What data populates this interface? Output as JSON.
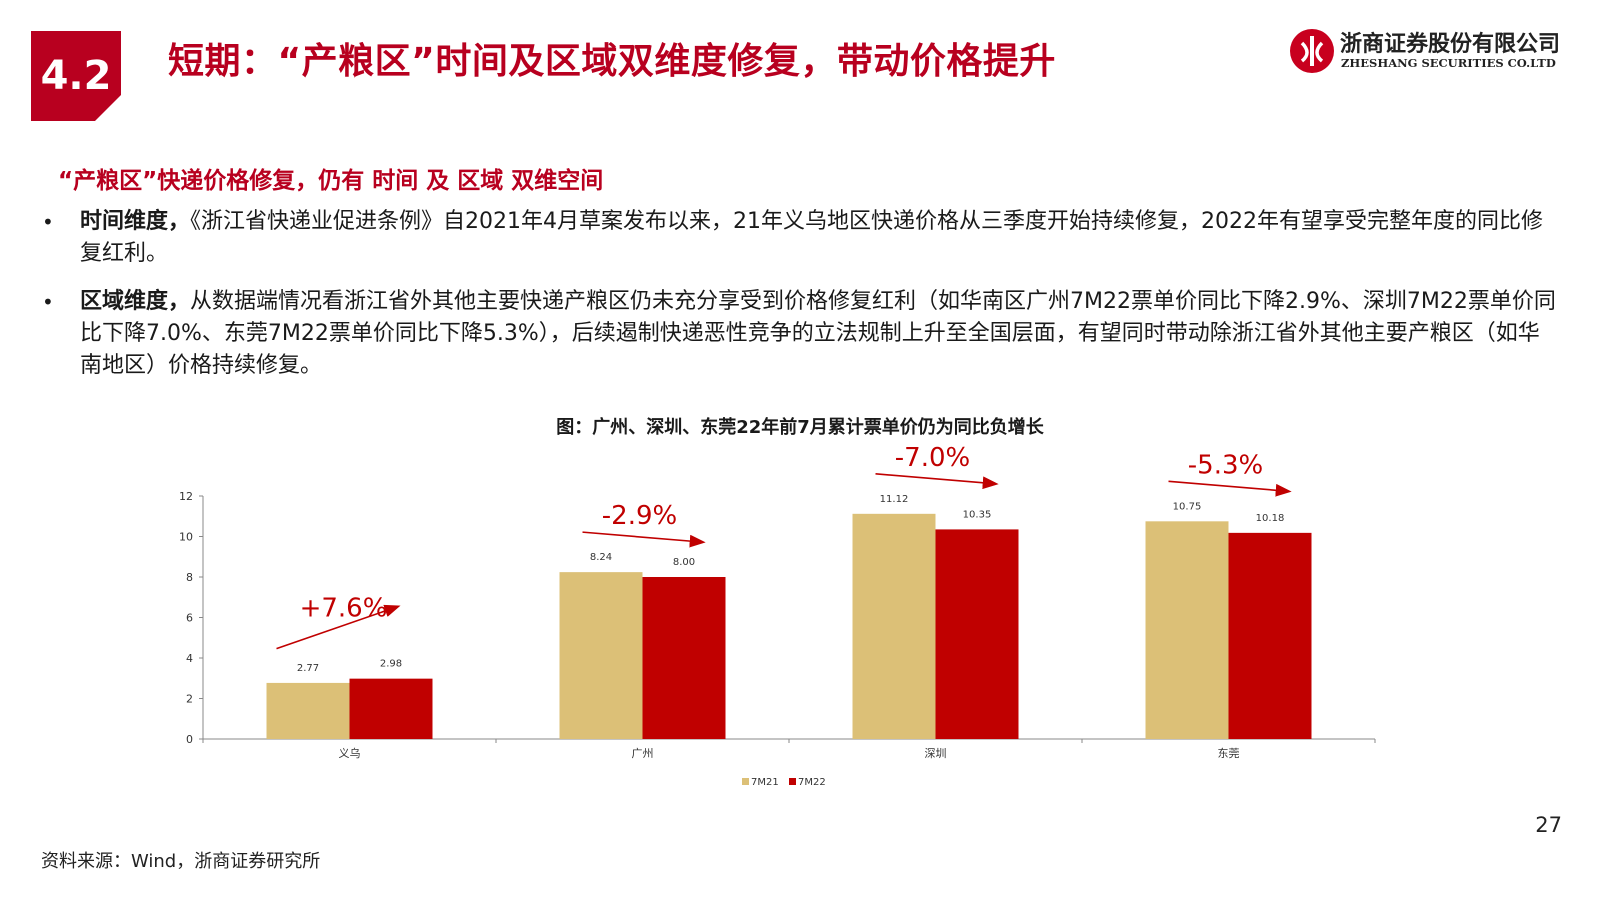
{
  "header": {
    "section_number": "4.2",
    "title": "短期：“产粮区”时间及区域双维度修复，带动价格提升",
    "logo_cn": "浙商证券股份有限公司",
    "logo_en": "ZHESHANG SECURITIES CO.LTD"
  },
  "subtitle": "“产粮区”快递价格修复，仍有 时间 及 区域 双维空间",
  "bullets": [
    {
      "bullet": "•",
      "label": "时间维度，",
      "text": "《浙江省快递业促进条例》自2021年4月草案发布以来，21年义乌地区快递价格从三季度开始持续修复，2022年有望享受完整年度的同比修复红利。"
    },
    {
      "bullet": "•",
      "label": "区域维度，",
      "text": "从数据端情况看浙江省外其他主要快递产粮区仍未充分享受到价格修复红利（如华南区广州7M22票单价同比下降2.9%、深圳7M22票单价同比下降7.0%、东莞7M22票单价同比下降5.3%），后续遏制快递恶性竞争的立法规制上升至全国层面，有望同时带动除浙江省外其他主要产粮区（如华南地区）价格持续修复。"
    }
  ],
  "chart_title": "图：广州、深圳、东莞22年前7月累计票单价仍为同比负增长",
  "chart_data": {
    "type": "bar",
    "categories": [
      "义乌",
      "广州",
      "深圳",
      "东莞"
    ],
    "series": [
      {
        "name": "7M21",
        "values": [
          2.77,
          8.24,
          11.12,
          10.75
        ],
        "color": "#dcc077"
      },
      {
        "name": "7M22",
        "values": [
          2.98,
          8.0,
          10.35,
          10.18
        ],
        "color": "#c00000"
      }
    ],
    "value_labels": [
      [
        "2.77",
        "8.24",
        "11.12",
        "10.75"
      ],
      [
        "2.98",
        "8.00",
        "10.35",
        "10.18"
      ]
    ],
    "yticks": [
      "0",
      "2",
      "4",
      "6",
      "8",
      "10",
      "12"
    ],
    "ylim": [
      0,
      12
    ],
    "changes": [
      "+7.6%",
      "-2.9%",
      "-7.0%",
      "-5.3%"
    ],
    "change_color": "#c00000",
    "legend_position": "bottom"
  },
  "page_number": "27",
  "source": "资料来源：Wind，浙商证券研究所"
}
